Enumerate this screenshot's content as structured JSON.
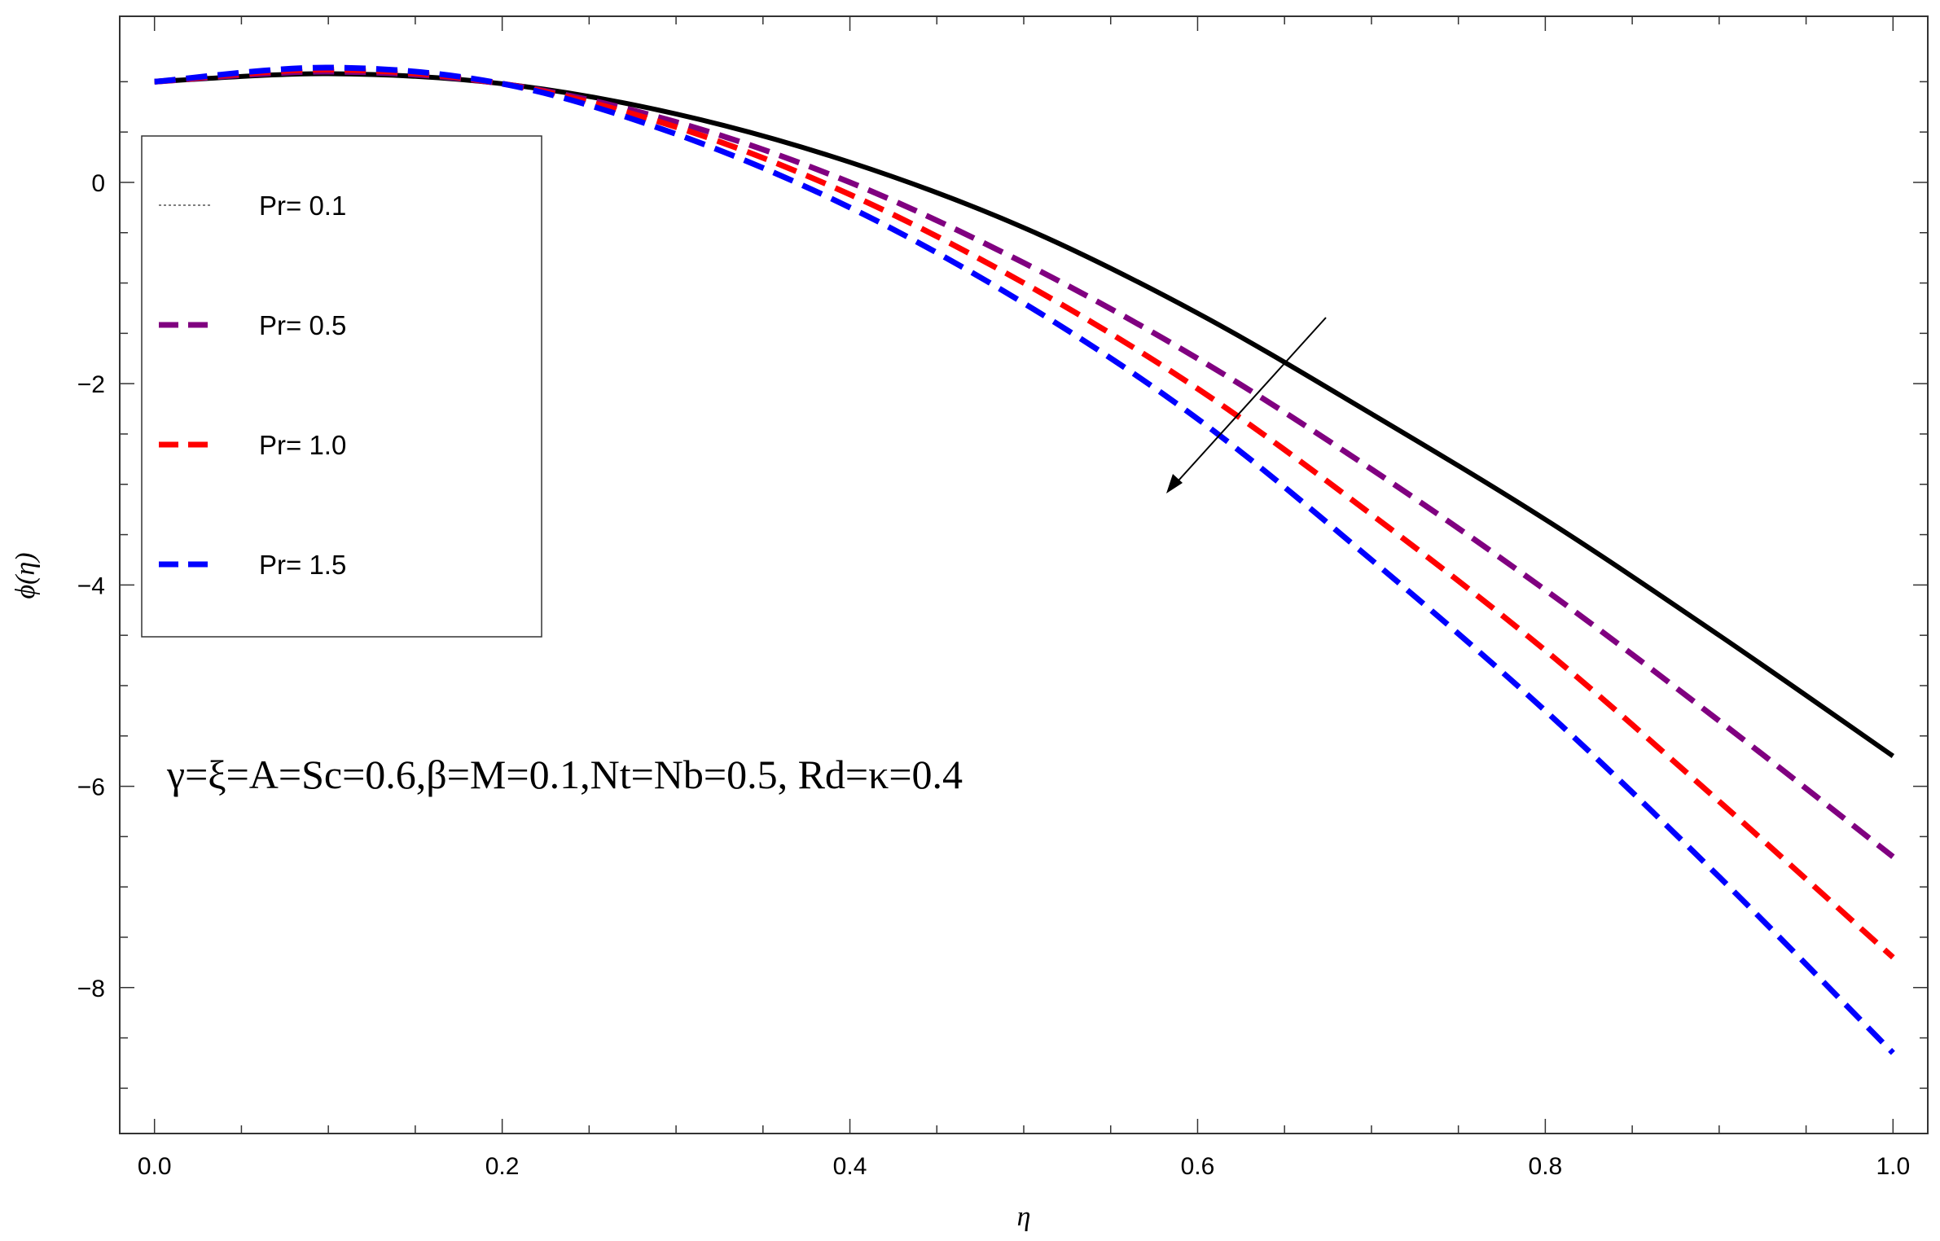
{
  "chart_data": {
    "type": "line",
    "xlabel": "η",
    "ylabel": "ϕ(η)",
    "xlim": [
      -0.02,
      1.02
    ],
    "ylim": [
      -9.45,
      1.65
    ],
    "x_ticks": [
      0.0,
      0.2,
      0.4,
      0.6,
      0.8,
      1.0
    ],
    "x_tick_labels": [
      "0.0",
      "0.2",
      "0.4",
      "0.6",
      "0.8",
      "1.0"
    ],
    "y_ticks": [
      0,
      -2,
      -4,
      -6,
      -8
    ],
    "y_tick_labels": [
      "0",
      "−2",
      "−4",
      "−6",
      "−8"
    ],
    "grid": false,
    "legend_position": "upper-left",
    "annotation": "γ=ξ=A=Sc=0.6,β=M=0.1,Nt=Nb=0.5, Rd=κ=0.4",
    "series": [
      {
        "name": "Pr= 0.1",
        "color": "#000000",
        "style": "solid",
        "x": [
          0.0,
          0.1,
          0.2,
          0.3,
          0.4,
          0.5,
          0.6,
          0.7,
          0.8,
          0.9,
          1.0
        ],
        "y": [
          1.0,
          1.08,
          0.98,
          0.68,
          0.2,
          -0.45,
          -1.3,
          -2.3,
          -3.35,
          -4.5,
          -5.7
        ]
      },
      {
        "name": "Pr= 0.5",
        "color": "#800080",
        "style": "dashed",
        "x": [
          0.0,
          0.1,
          0.2,
          0.3,
          0.4,
          0.5,
          0.6,
          0.7,
          0.8,
          0.9,
          1.0
        ],
        "y": [
          1.0,
          1.1,
          0.98,
          0.6,
          0.0,
          -0.8,
          -1.75,
          -2.85,
          -4.05,
          -5.35,
          -6.7
        ]
      },
      {
        "name": "Pr= 1.0",
        "color": "#ff0000",
        "style": "dashed",
        "x": [
          0.0,
          0.1,
          0.2,
          0.3,
          0.4,
          0.5,
          0.6,
          0.7,
          0.8,
          0.9,
          1.0
        ],
        "y": [
          1.0,
          1.12,
          0.98,
          0.55,
          -0.12,
          -1.0,
          -2.05,
          -3.3,
          -4.65,
          -6.15,
          -7.7
        ]
      },
      {
        "name": "Pr= 1.5",
        "color": "#0000ff",
        "style": "dashed",
        "x": [
          0.0,
          0.1,
          0.2,
          0.3,
          0.4,
          0.5,
          0.6,
          0.7,
          0.8,
          0.9,
          1.0
        ],
        "y": [
          1.0,
          1.14,
          0.98,
          0.48,
          -0.25,
          -1.2,
          -2.35,
          -3.75,
          -5.25,
          -6.9,
          -8.65
        ]
      }
    ]
  }
}
